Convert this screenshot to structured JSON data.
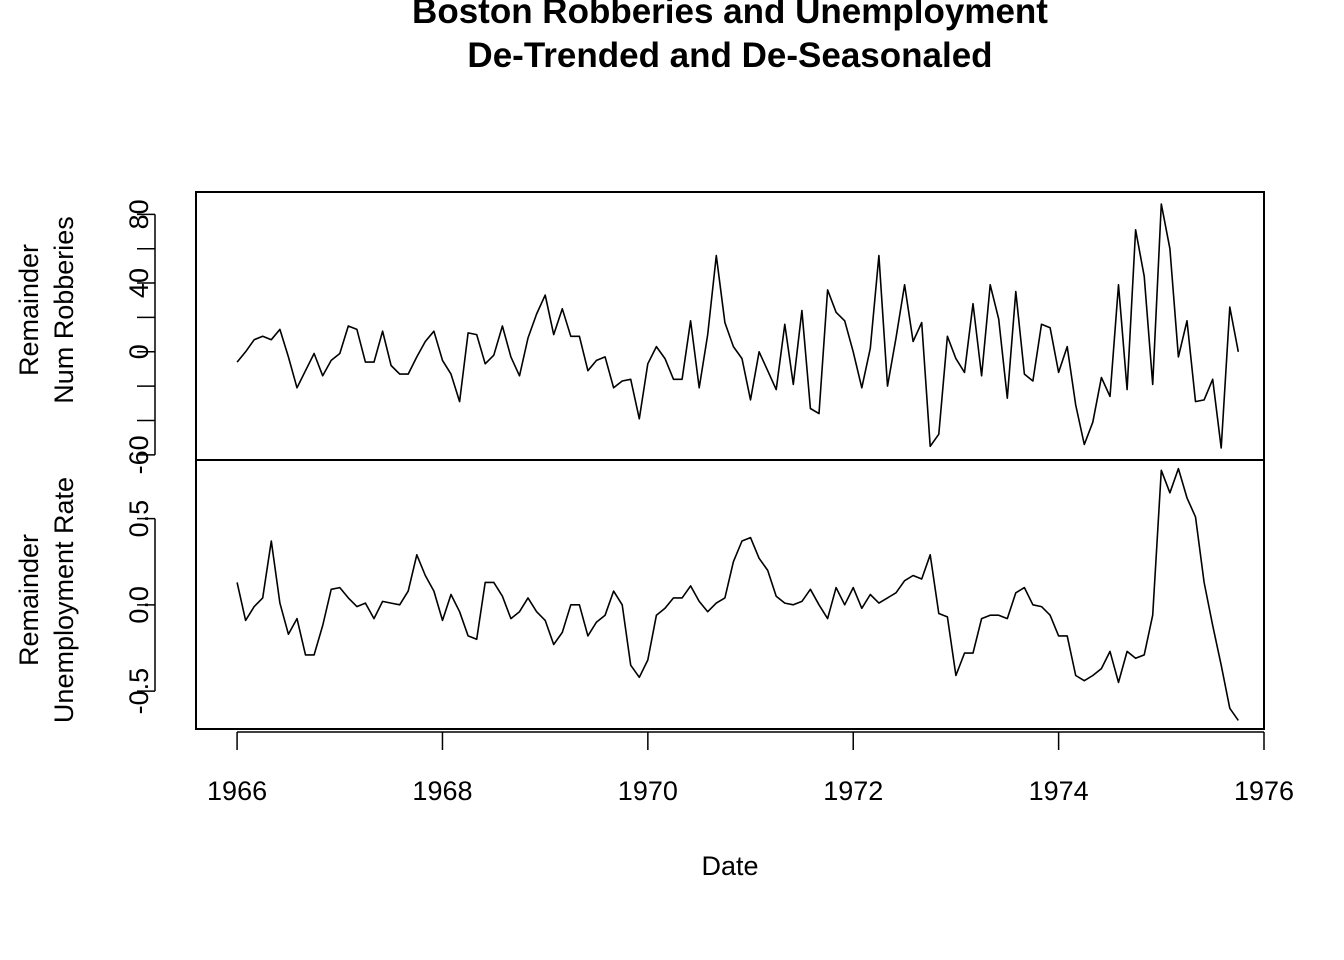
{
  "chart_data": {
    "type": "line",
    "title": [
      "Boston Robberies and Unemployment",
      "De-Trended and De-Seasonaled"
    ],
    "xlabel": "Date",
    "x_ticks": [
      "1966",
      "1968",
      "1970",
      "1972",
      "1974",
      "1976"
    ],
    "xlim": [
      1965.6,
      1976.0
    ],
    "x_start": 1966.0,
    "x_step": 0.0833333,
    "grid": false,
    "line_color": "#000000",
    "panels": [
      {
        "name": "robberies",
        "ylabel": [
          "Remainder",
          "Num Robberies"
        ],
        "y_ticks": [
          "-60",
          "0",
          "40",
          "80"
        ],
        "y_minor_ticks": [
          -40,
          -20,
          20,
          60
        ],
        "ylim": [
          -63,
          93
        ],
        "values": [
          -6,
          0,
          7,
          9,
          7,
          13,
          -3,
          -21,
          -11,
          -1,
          -14,
          -5,
          -1,
          15,
          13,
          -6,
          -6,
          12,
          -8,
          -13,
          -13,
          -3,
          6,
          12,
          -5,
          -13,
          -29,
          11,
          10,
          -7,
          -2,
          15,
          -3,
          -14,
          8,
          22,
          33,
          10,
          25,
          9,
          9,
          -11,
          -5,
          -3,
          -21,
          -17,
          -16,
          -39,
          -7,
          3,
          -4,
          -16,
          -16,
          18,
          -21,
          10,
          56,
          17,
          3,
          -4,
          -28,
          0,
          -11,
          -22,
          16,
          -19,
          24,
          -33,
          -36,
          36,
          23,
          18,
          0,
          -21,
          2,
          56,
          -20,
          8,
          39,
          6,
          17,
          -55,
          -48,
          9,
          -4,
          -12,
          28,
          -14,
          39,
          19,
          -27,
          35,
          -13,
          -17,
          16,
          14,
          -12,
          3,
          -31,
          -54,
          -41,
          -15,
          -26,
          39,
          -22,
          71,
          44,
          -19,
          86,
          60,
          -3,
          18,
          -29,
          -28,
          -16,
          -56,
          26,
          0
        ]
      },
      {
        "name": "unemployment",
        "ylabel": [
          "Remainder",
          "Unemployment Rate"
        ],
        "y_ticks": [
          "-0.5",
          "0.0",
          "0.5"
        ],
        "ylim": [
          -0.72,
          0.84
        ],
        "values": [
          0.13,
          -0.09,
          -0.01,
          0.04,
          0.37,
          0.01,
          -0.17,
          -0.08,
          -0.29,
          -0.29,
          -0.12,
          0.09,
          0.1,
          0.04,
          -0.01,
          0.01,
          -0.08,
          0.02,
          0.01,
          0.0,
          0.08,
          0.29,
          0.17,
          0.08,
          -0.09,
          0.06,
          -0.04,
          -0.18,
          -0.2,
          0.13,
          0.13,
          0.05,
          -0.08,
          -0.04,
          0.04,
          -0.04,
          -0.09,
          -0.23,
          -0.16,
          0.0,
          0.0,
          -0.18,
          -0.1,
          -0.06,
          0.08,
          0.0,
          -0.35,
          -0.42,
          -0.32,
          -0.06,
          -0.02,
          0.04,
          0.04,
          0.11,
          0.02,
          -0.04,
          0.01,
          0.04,
          0.25,
          0.37,
          0.39,
          0.27,
          0.2,
          0.05,
          0.01,
          0.0,
          0.02,
          0.09,
          0.0,
          -0.08,
          0.1,
          0.0,
          0.1,
          -0.02,
          0.06,
          0.01,
          0.04,
          0.07,
          0.14,
          0.17,
          0.15,
          0.29,
          -0.05,
          -0.07,
          -0.41,
          -0.28,
          -0.28,
          -0.08,
          -0.06,
          -0.06,
          -0.08,
          0.07,
          0.1,
          0.0,
          -0.01,
          -0.06,
          -0.18,
          -0.18,
          -0.41,
          -0.44,
          -0.41,
          -0.37,
          -0.27,
          -0.45,
          -0.27,
          -0.31,
          -0.29,
          -0.06,
          0.78,
          0.65,
          0.79,
          0.62,
          0.51,
          0.13,
          -0.12,
          -0.35,
          -0.6,
          -0.67
        ]
      }
    ]
  }
}
